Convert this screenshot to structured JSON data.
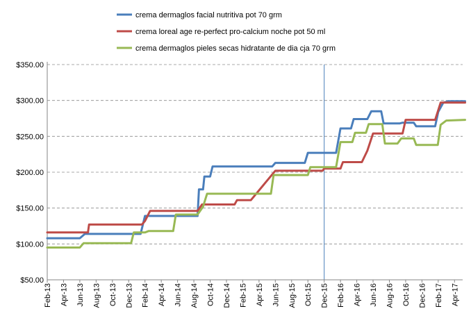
{
  "chart_data": {
    "type": "line",
    "title": "",
    "xlabel": "",
    "ylabel": "",
    "ylim": [
      50,
      350
    ],
    "yticks": [
      "$50.00",
      "$100.00",
      "$150.00",
      "$200.00",
      "$250.00",
      "$300.00",
      "$350.00"
    ],
    "ytick_values": [
      50,
      100,
      150,
      200,
      250,
      300,
      350
    ],
    "x_labels": [
      "Feb-13",
      "Apr-13",
      "Jun-13",
      "Aug-13",
      "Oct-13",
      "Dec-13",
      "Feb-14",
      "Apr-14",
      "Jun-14",
      "Aug-14",
      "Oct-14",
      "Dec-14",
      "Feb-15",
      "Apr-15",
      "Jun-15",
      "Aug-15",
      "Oct-15",
      "Dec-15",
      "Feb-16",
      "Apr-16",
      "Jun-16",
      "Aug-16",
      "Oct-16",
      "Dec-16",
      "Feb-17",
      "Apr-17"
    ],
    "x_range": [
      "2013-02",
      "2017-05"
    ],
    "grid": "horizontal-dashed",
    "legend_position": "top",
    "marker_line": "2015-12",
    "series": [
      {
        "name": "crema dermaglos facial nutritiva pot 70 grm",
        "color": "#4a7ebb",
        "points": [
          [
            "2013-02-01",
            108
          ],
          [
            "2013-06-01",
            108
          ],
          [
            "2013-06-20",
            114
          ],
          [
            "2014-01-15",
            114
          ],
          [
            "2014-02-01",
            139
          ],
          [
            "2014-08-15",
            139
          ],
          [
            "2014-08-20",
            176
          ],
          [
            "2014-09-05",
            176
          ],
          [
            "2014-09-10",
            194
          ],
          [
            "2014-10-01",
            194
          ],
          [
            "2014-10-10",
            208
          ],
          [
            "2015-05-20",
            208
          ],
          [
            "2015-06-01",
            213
          ],
          [
            "2015-09-20",
            213
          ],
          [
            "2015-10-01",
            227
          ],
          [
            "2016-01-15",
            227
          ],
          [
            "2016-02-01",
            261
          ],
          [
            "2016-03-10",
            261
          ],
          [
            "2016-03-20",
            274
          ],
          [
            "2016-05-10",
            274
          ],
          [
            "2016-05-25",
            285
          ],
          [
            "2016-07-01",
            285
          ],
          [
            "2016-07-10",
            268
          ],
          [
            "2016-09-10",
            268
          ],
          [
            "2016-09-20",
            269
          ],
          [
            "2016-11-01",
            269
          ],
          [
            "2016-11-10",
            264
          ],
          [
            "2017-01-20",
            264
          ],
          [
            "2017-02-01",
            284
          ],
          [
            "2017-02-20",
            297
          ],
          [
            "2017-03-10",
            299
          ],
          [
            "2017-05-10",
            299
          ]
        ]
      },
      {
        "name": "crema loreal age re-perfect pro-calcium noche pot 50 ml",
        "color": "#be4b48",
        "points": [
          [
            "2013-02-01",
            116
          ],
          [
            "2013-07-01",
            116
          ],
          [
            "2013-07-05",
            127
          ],
          [
            "2014-01-20",
            127
          ],
          [
            "2014-02-01",
            132
          ],
          [
            "2014-02-20",
            146
          ],
          [
            "2014-08-15",
            146
          ],
          [
            "2014-09-01",
            155
          ],
          [
            "2015-01-01",
            155
          ],
          [
            "2015-01-10",
            161
          ],
          [
            "2015-03-01",
            161
          ],
          [
            "2015-06-01",
            202
          ],
          [
            "2015-11-25",
            202
          ],
          [
            "2015-12-01",
            205
          ],
          [
            "2016-02-01",
            205
          ],
          [
            "2016-02-10",
            214
          ],
          [
            "2016-04-10",
            214
          ],
          [
            "2016-04-20",
            214
          ],
          [
            "2016-05-10",
            230
          ],
          [
            "2016-06-01",
            254
          ],
          [
            "2016-09-20",
            254
          ],
          [
            "2016-10-01",
            273
          ],
          [
            "2017-01-20",
            273
          ],
          [
            "2017-02-10",
            297
          ],
          [
            "2017-05-10",
            297
          ]
        ]
      },
      {
        "name": "crema dermaglos pieles secas hidratante de dia cja 70 grm",
        "color": "#98b954",
        "points": [
          [
            "2013-02-01",
            95
          ],
          [
            "2013-06-01",
            95
          ],
          [
            "2013-06-15",
            101
          ],
          [
            "2013-12-10",
            101
          ],
          [
            "2013-12-20",
            116
          ],
          [
            "2014-02-01",
            116
          ],
          [
            "2014-02-15",
            118
          ],
          [
            "2014-05-15",
            118
          ],
          [
            "2014-05-25",
            141
          ],
          [
            "2014-08-15",
            141
          ],
          [
            "2014-09-05",
            152
          ],
          [
            "2014-09-20",
            170
          ],
          [
            "2015-05-15",
            170
          ],
          [
            "2015-05-25",
            196
          ],
          [
            "2015-10-01",
            196
          ],
          [
            "2015-10-10",
            207
          ],
          [
            "2016-01-15",
            207
          ],
          [
            "2016-02-01",
            242
          ],
          [
            "2016-03-15",
            242
          ],
          [
            "2016-03-25",
            255
          ],
          [
            "2016-05-05",
            255
          ],
          [
            "2016-05-15",
            267
          ],
          [
            "2016-07-05",
            267
          ],
          [
            "2016-07-15",
            240
          ],
          [
            "2016-09-01",
            240
          ],
          [
            "2016-09-15",
            247
          ],
          [
            "2016-11-01",
            247
          ],
          [
            "2016-11-10",
            238
          ],
          [
            "2017-01-30",
            238
          ],
          [
            "2017-02-10",
            266
          ],
          [
            "2017-03-01",
            272
          ],
          [
            "2017-05-10",
            273
          ]
        ]
      }
    ]
  }
}
